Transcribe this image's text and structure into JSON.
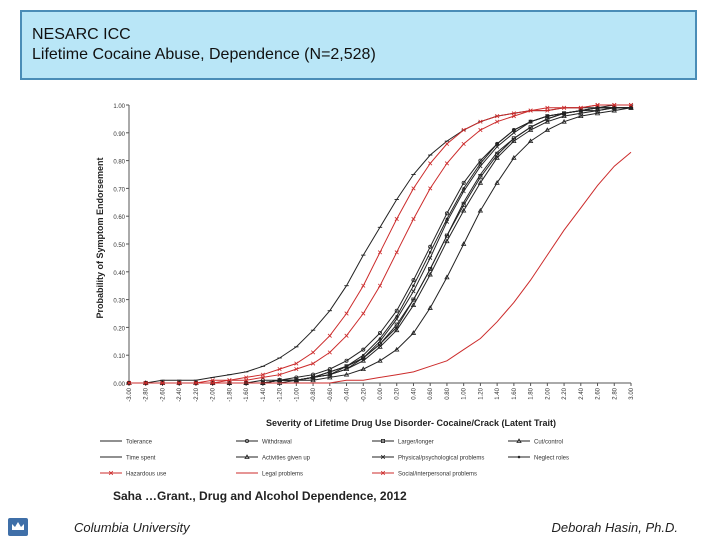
{
  "header": {
    "title": "NESARC ICC",
    "subtitle": "Lifetime Cocaine Abuse, Dependence (N=2,528)"
  },
  "chart_data": {
    "type": "line",
    "xlabel": "Severity of Lifetime Drug Use Disorder- Cocaine/Crack (Latent Trait)",
    "ylabel": "Probability of Symptom Endorsement",
    "xlim": [
      -3.0,
      3.0
    ],
    "ylim": [
      0.0,
      1.0
    ],
    "x_ticks": [
      "-3.00",
      "-2.80",
      "-2.60",
      "-2.40",
      "-2.20",
      "-2.00",
      "-1.80",
      "-1.60",
      "-1.40",
      "-1.20",
      "-1.00",
      "-0.80",
      "-0.60",
      "-0.40",
      "-0.20",
      "0.00",
      "0.20",
      "0.40",
      "0.60",
      "0.80",
      "1.00",
      "1.20",
      "1.40",
      "1.60",
      "1.80",
      "2.00",
      "2.20",
      "2.40",
      "2.60",
      "2.80",
      "3.00"
    ],
    "y_ticks": [
      "0.00",
      "0.10",
      "0.20",
      "0.30",
      "0.40",
      "0.50",
      "0.60",
      "0.70",
      "0.80",
      "0.90",
      "1.00"
    ],
    "grid": false,
    "legend_position": "bottom",
    "x": [
      -3.0,
      -2.8,
      -2.6,
      -2.4,
      -2.2,
      -2.0,
      -1.8,
      -1.6,
      -1.4,
      -1.2,
      -1.0,
      -0.8,
      -0.6,
      -0.4,
      -0.2,
      0.0,
      0.2,
      0.4,
      0.6,
      0.8,
      1.0,
      1.2,
      1.4,
      1.6,
      1.8,
      2.0,
      2.2,
      2.4,
      2.6,
      2.8,
      3.0
    ],
    "series": [
      {
        "name": "Tolerance",
        "color": "#222222",
        "marker": "dash",
        "values": [
          0.0,
          0.0,
          0.01,
          0.01,
          0.01,
          0.02,
          0.03,
          0.04,
          0.06,
          0.09,
          0.13,
          0.19,
          0.26,
          0.35,
          0.46,
          0.56,
          0.66,
          0.75,
          0.82,
          0.87,
          0.91,
          0.94,
          0.96,
          0.97,
          0.98,
          0.98,
          0.99,
          0.99,
          0.99,
          1.0,
          1.0
        ]
      },
      {
        "name": "Withdrawal",
        "color": "#222222",
        "marker": "circle",
        "values": [
          0.0,
          0.0,
          0.0,
          0.0,
          0.0,
          0.0,
          0.0,
          0.0,
          0.01,
          0.01,
          0.02,
          0.03,
          0.05,
          0.08,
          0.12,
          0.18,
          0.26,
          0.37,
          0.49,
          0.61,
          0.72,
          0.8,
          0.86,
          0.91,
          0.94,
          0.96,
          0.97,
          0.98,
          0.99,
          0.99,
          0.99
        ]
      },
      {
        "name": "Larger/longer",
        "color": "#222222",
        "marker": "square",
        "values": [
          0.0,
          0.0,
          0.0,
          0.0,
          0.0,
          0.0,
          0.0,
          0.0,
          0.0,
          0.01,
          0.01,
          0.02,
          0.04,
          0.06,
          0.09,
          0.14,
          0.21,
          0.3,
          0.41,
          0.53,
          0.64,
          0.74,
          0.82,
          0.88,
          0.92,
          0.95,
          0.97,
          0.98,
          0.98,
          0.99,
          0.99
        ]
      },
      {
        "name": "Cut/control",
        "color": "#222222",
        "marker": "triangle",
        "values": [
          0.0,
          0.0,
          0.0,
          0.0,
          0.0,
          0.0,
          0.0,
          0.0,
          0.0,
          0.01,
          0.01,
          0.02,
          0.03,
          0.05,
          0.08,
          0.13,
          0.19,
          0.28,
          0.39,
          0.51,
          0.62,
          0.72,
          0.81,
          0.87,
          0.91,
          0.94,
          0.96,
          0.97,
          0.98,
          0.99,
          0.99
        ]
      },
      {
        "name": "Time spent",
        "color": "#222222",
        "marker": "dash",
        "values": [
          0.0,
          0.0,
          0.0,
          0.0,
          0.0,
          0.0,
          0.0,
          0.0,
          0.0,
          0.01,
          0.01,
          0.02,
          0.03,
          0.05,
          0.09,
          0.14,
          0.2,
          0.3,
          0.41,
          0.53,
          0.65,
          0.75,
          0.83,
          0.88,
          0.92,
          0.95,
          0.97,
          0.98,
          0.99,
          0.99,
          0.99
        ]
      },
      {
        "name": "Activities given up",
        "color": "#222222",
        "marker": "triangle",
        "values": [
          0.0,
          0.0,
          0.0,
          0.0,
          0.0,
          0.0,
          0.0,
          0.0,
          0.0,
          0.0,
          0.01,
          0.01,
          0.02,
          0.03,
          0.05,
          0.08,
          0.12,
          0.18,
          0.27,
          0.38,
          0.5,
          0.62,
          0.72,
          0.81,
          0.87,
          0.91,
          0.94,
          0.96,
          0.97,
          0.98,
          0.99
        ]
      },
      {
        "name": "Physical/psychological problems",
        "color": "#222222",
        "marker": "x",
        "values": [
          0.0,
          0.0,
          0.0,
          0.0,
          0.0,
          0.0,
          0.0,
          0.0,
          0.0,
          0.01,
          0.01,
          0.02,
          0.03,
          0.06,
          0.09,
          0.15,
          0.23,
          0.33,
          0.45,
          0.58,
          0.69,
          0.78,
          0.85,
          0.9,
          0.94,
          0.96,
          0.97,
          0.98,
          0.99,
          0.99,
          0.99
        ]
      },
      {
        "name": "Neglect roles",
        "color": "#222222",
        "marker": "dot",
        "values": [
          0.0,
          0.0,
          0.0,
          0.0,
          0.0,
          0.0,
          0.0,
          0.0,
          0.0,
          0.01,
          0.01,
          0.02,
          0.04,
          0.06,
          0.1,
          0.16,
          0.24,
          0.35,
          0.47,
          0.59,
          0.7,
          0.79,
          0.86,
          0.91,
          0.94,
          0.96,
          0.97,
          0.98,
          0.99,
          0.99,
          0.99
        ]
      },
      {
        "name": "Hazardous use",
        "color": "#cc2b2b",
        "marker": "x",
        "values": [
          0.0,
          0.0,
          0.0,
          0.0,
          0.0,
          0.01,
          0.01,
          0.02,
          0.03,
          0.05,
          0.07,
          0.11,
          0.17,
          0.25,
          0.35,
          0.47,
          0.59,
          0.7,
          0.79,
          0.86,
          0.91,
          0.94,
          0.96,
          0.97,
          0.98,
          0.99,
          0.99,
          0.99,
          1.0,
          1.0,
          1.0
        ]
      },
      {
        "name": "Legal problems",
        "color": "#cc2b2b",
        "marker": "none",
        "values": [
          0.0,
          0.0,
          0.0,
          0.0,
          0.0,
          0.0,
          0.0,
          0.0,
          0.0,
          0.0,
          0.0,
          0.0,
          0.0,
          0.01,
          0.01,
          0.02,
          0.03,
          0.04,
          0.06,
          0.08,
          0.12,
          0.16,
          0.22,
          0.29,
          0.37,
          0.46,
          0.55,
          0.63,
          0.71,
          0.78,
          0.83
        ]
      },
      {
        "name": "Social/interpersonal problems",
        "color": "#cc2b2b",
        "marker": "x",
        "values": [
          0.0,
          0.0,
          0.0,
          0.0,
          0.0,
          0.0,
          0.01,
          0.01,
          0.02,
          0.03,
          0.05,
          0.07,
          0.11,
          0.17,
          0.25,
          0.35,
          0.47,
          0.59,
          0.7,
          0.79,
          0.86,
          0.91,
          0.94,
          0.96,
          0.98,
          0.98,
          0.99,
          0.99,
          1.0,
          1.0,
          1.0
        ]
      }
    ]
  },
  "citation": "Saha …Grant., Drug and Alcohol Dependence, 2012",
  "footer": {
    "left": "Columbia University",
    "right": "Deborah   Hasin, Ph.D."
  }
}
